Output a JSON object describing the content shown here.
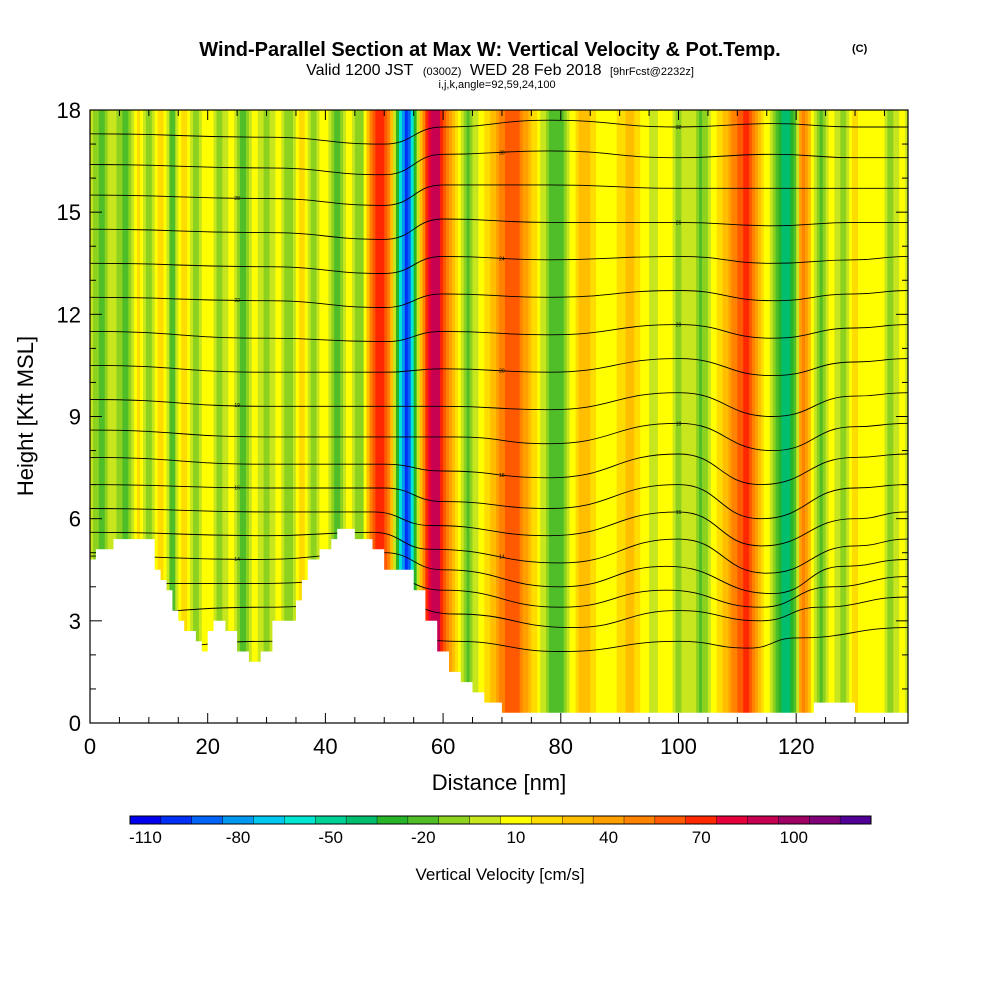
{
  "chart_data": {
    "type": "heatmap",
    "title": "Wind-Parallel Section at Max W: Vertical Velocity & Pot.Temp.",
    "title_mark": "(C)",
    "subtitle": {
      "valid_prefix": "Valid 1200 JST",
      "utc": "(0300Z)",
      "date": "WED 28 Feb 2018",
      "forecast": "[9hrFcst@2232z]"
    },
    "indices_line": "i,j,k,angle=92,59,24,100",
    "xlabel": "Distance [nm]",
    "ylabel": "Height [Kft MSL]",
    "xlim": [
      0,
      139
    ],
    "ylim": [
      0,
      18
    ],
    "x_ticks": [
      "0",
      "20",
      "40",
      "60",
      "80",
      "100",
      "120"
    ],
    "x_tick_values": [
      0,
      20,
      40,
      60,
      80,
      100,
      120
    ],
    "y_ticks": [
      "0",
      "3",
      "6",
      "9",
      "12",
      "15",
      "18"
    ],
    "y_tick_values": [
      0,
      3,
      6,
      9,
      12,
      15,
      18
    ],
    "colorbar": {
      "label": "Vertical Velocity [cm/s]",
      "min": -115,
      "max": 125,
      "step": 10,
      "tick_labels": [
        "-110",
        "-80",
        "-50",
        "-20",
        "10",
        "40",
        "70",
        "100"
      ],
      "tick_values": [
        -110,
        -80,
        -50,
        -20,
        10,
        40,
        70,
        100
      ],
      "colors": [
        "#0000f0",
        "#0030f8",
        "#0064f8",
        "#0098f0",
        "#00c8f0",
        "#00e6d2",
        "#00d296",
        "#00be6e",
        "#28b428",
        "#50be28",
        "#8cd21e",
        "#c8e61e",
        "#ffff00",
        "#ffdc00",
        "#ffbe00",
        "#ffa000",
        "#ff8200",
        "#ff5a00",
        "#ff2800",
        "#e6003c",
        "#c80050",
        "#a00064",
        "#820078",
        "#500096"
      ]
    },
    "terrain_kft": [
      {
        "x": 0,
        "h": 4.8
      },
      {
        "x": 1,
        "h": 5.1
      },
      {
        "x": 3,
        "h": 5.1
      },
      {
        "x": 4,
        "h": 5.4
      },
      {
        "x": 10,
        "h": 5.4
      },
      {
        "x": 11,
        "h": 4.5
      },
      {
        "x": 12,
        "h": 4.2
      },
      {
        "x": 13,
        "h": 3.9
      },
      {
        "x": 14,
        "h": 3.3
      },
      {
        "x": 15,
        "h": 3.0
      },
      {
        "x": 16,
        "h": 2.7
      },
      {
        "x": 18,
        "h": 2.4
      },
      {
        "x": 19,
        "h": 2.1
      },
      {
        "x": 20,
        "h": 2.7
      },
      {
        "x": 21,
        "h": 3.0
      },
      {
        "x": 23,
        "h": 2.7
      },
      {
        "x": 25,
        "h": 2.1
      },
      {
        "x": 27,
        "h": 1.8
      },
      {
        "x": 29,
        "h": 2.1
      },
      {
        "x": 31,
        "h": 3.0
      },
      {
        "x": 35,
        "h": 3.6
      },
      {
        "x": 36,
        "h": 4.2
      },
      {
        "x": 37,
        "h": 4.8
      },
      {
        "x": 39,
        "h": 5.1
      },
      {
        "x": 41,
        "h": 5.4
      },
      {
        "x": 42,
        "h": 5.7
      },
      {
        "x": 44,
        "h": 5.7
      },
      {
        "x": 45,
        "h": 5.4
      },
      {
        "x": 47,
        "h": 5.4
      },
      {
        "x": 48,
        "h": 5.1
      },
      {
        "x": 50,
        "h": 4.5
      },
      {
        "x": 53,
        "h": 4.5
      },
      {
        "x": 55,
        "h": 3.9
      },
      {
        "x": 57,
        "h": 3.0
      },
      {
        "x": 59,
        "h": 2.1
      },
      {
        "x": 61,
        "h": 1.5
      },
      {
        "x": 63,
        "h": 1.2
      },
      {
        "x": 65,
        "h": 0.9
      },
      {
        "x": 67,
        "h": 0.6
      },
      {
        "x": 70,
        "h": 0.3
      },
      {
        "x": 75,
        "h": 0.3
      },
      {
        "x": 120,
        "h": 0.3
      },
      {
        "x": 123,
        "h": 0.6
      },
      {
        "x": 127,
        "h": 0.6
      },
      {
        "x": 130,
        "h": 0.3
      },
      {
        "x": 139,
        "h": 0.3
      }
    ],
    "bands_w": [
      {
        "x": 0.0,
        "w": 0.0
      },
      {
        "x": 2.0,
        "w": -18.0
      },
      {
        "x": 4.0,
        "w": 5.0
      },
      {
        "x": 6.0,
        "w": -24.0
      },
      {
        "x": 8.0,
        "w": 20.0
      },
      {
        "x": 10.0,
        "w": -14.0
      },
      {
        "x": 12.0,
        "w": 28.0
      },
      {
        "x": 14.0,
        "w": -22.0
      },
      {
        "x": 16.0,
        "w": 30.0
      },
      {
        "x": 18.0,
        "w": -12.0
      },
      {
        "x": 20.0,
        "w": 18.0
      },
      {
        "x": 22.0,
        "w": -15.0
      },
      {
        "x": 24.0,
        "w": 15.0
      },
      {
        "x": 26.0,
        "w": -20.0
      },
      {
        "x": 28.0,
        "w": 10.0
      },
      {
        "x": 30.0,
        "w": -14.0
      },
      {
        "x": 32.0,
        "w": 12.0
      },
      {
        "x": 34.0,
        "w": -18.0
      },
      {
        "x": 36.0,
        "w": 28.0
      },
      {
        "x": 38.0,
        "w": -10.0
      },
      {
        "x": 40.0,
        "w": 15.0
      },
      {
        "x": 42.0,
        "w": -22.0
      },
      {
        "x": 44.0,
        "w": 12.0
      },
      {
        "x": 46.0,
        "w": -18.0
      },
      {
        "x": 48.0,
        "w": 55.0
      },
      {
        "x": 49.5,
        "w": 75.0
      },
      {
        "x": 51.0,
        "w": 40.0
      },
      {
        "x": 52.0,
        "w": -10.0
      },
      {
        "x": 53.0,
        "w": -75.0
      },
      {
        "x": 54.0,
        "w": -105.0
      },
      {
        "x": 55.0,
        "w": -40.0
      },
      {
        "x": 56.0,
        "w": 15.0
      },
      {
        "x": 57.5,
        "w": 75.0
      },
      {
        "x": 59.0,
        "w": 95.0
      },
      {
        "x": 61.0,
        "w": 40.0
      },
      {
        "x": 62.5,
        "w": 10.0
      },
      {
        "x": 64.0,
        "w": -20.0
      },
      {
        "x": 66.0,
        "w": 5.0
      },
      {
        "x": 68.0,
        "w": 25.0
      },
      {
        "x": 70.0,
        "w": 50.0
      },
      {
        "x": 72.0,
        "w": 65.0
      },
      {
        "x": 74.0,
        "w": 40.0
      },
      {
        "x": 76.0,
        "w": 15.0
      },
      {
        "x": 78.0,
        "w": -15.0
      },
      {
        "x": 80.0,
        "w": -20.0
      },
      {
        "x": 82.0,
        "w": 10.0
      },
      {
        "x": 84.0,
        "w": 35.0
      },
      {
        "x": 86.0,
        "w": 15.0
      },
      {
        "x": 88.0,
        "w": 5.0
      },
      {
        "x": 90.0,
        "w": 20.0
      },
      {
        "x": 92.0,
        "w": 30.0
      },
      {
        "x": 94.0,
        "w": 10.0
      },
      {
        "x": 96.0,
        "w": 0.0
      },
      {
        "x": 98.0,
        "w": 15.0
      },
      {
        "x": 100.0,
        "w": -10.0
      },
      {
        "x": 102.0,
        "w": 5.0
      },
      {
        "x": 104.0,
        "w": -18.0
      },
      {
        "x": 106.0,
        "w": 10.0
      },
      {
        "x": 108.0,
        "w": 30.0
      },
      {
        "x": 110.0,
        "w": 55.0
      },
      {
        "x": 111.5,
        "w": 70.0
      },
      {
        "x": 113.0,
        "w": 45.0
      },
      {
        "x": 115.0,
        "w": 10.0
      },
      {
        "x": 117.0,
        "w": -30.0
      },
      {
        "x": 118.5,
        "w": -45.0
      },
      {
        "x": 120.0,
        "w": -15.0
      },
      {
        "x": 121.0,
        "w": 60.0
      },
      {
        "x": 122.0,
        "w": 35.0
      },
      {
        "x": 124.0,
        "w": -20.0
      },
      {
        "x": 126.0,
        "w": 10.0
      },
      {
        "x": 128.0,
        "w": -10.0
      },
      {
        "x": 130.0,
        "w": 20.0
      },
      {
        "x": 132.0,
        "w": 5.0
      },
      {
        "x": 134.0,
        "w": 15.0
      },
      {
        "x": 136.0,
        "w": -10.0
      },
      {
        "x": 138.0,
        "w": 10.0
      },
      {
        "x": 139.0,
        "w": 0.0
      }
    ],
    "isentropes": [
      {
        "label": "",
        "points": [
          [
            0,
            2.0
          ],
          [
            30,
            2.4
          ],
          [
            50,
            2.6
          ],
          [
            62,
            2.4
          ],
          [
            80,
            2.1
          ],
          [
            100,
            2.4
          ],
          [
            112,
            2.2
          ],
          [
            120,
            2.5
          ],
          [
            139,
            2.8
          ]
        ]
      },
      {
        "label": "",
        "points": [
          [
            0,
            3.2
          ],
          [
            30,
            3.4
          ],
          [
            50,
            3.6
          ],
          [
            62,
            3.2
          ],
          [
            82,
            2.8
          ],
          [
            100,
            3.3
          ],
          [
            114,
            3.0
          ],
          [
            124,
            3.4
          ],
          [
            139,
            3.7
          ]
        ]
      },
      {
        "label": "",
        "points": [
          [
            0,
            4.1
          ],
          [
            30,
            4.1
          ],
          [
            50,
            4.3
          ],
          [
            60,
            3.9
          ],
          [
            80,
            3.4
          ],
          [
            98,
            3.9
          ],
          [
            114,
            3.4
          ],
          [
            126,
            4.0
          ],
          [
            139,
            4.3
          ]
        ]
      },
      {
        "label": "14",
        "points": [
          [
            0,
            4.9
          ],
          [
            28,
            4.8
          ],
          [
            50,
            5.0
          ],
          [
            60,
            4.5
          ],
          [
            80,
            4.0
          ],
          [
            98,
            4.6
          ],
          [
            116,
            3.8
          ],
          [
            128,
            4.6
          ],
          [
            139,
            4.8
          ]
        ]
      },
      {
        "label": "14",
        "points": [
          [
            0,
            5.6
          ],
          [
            30,
            5.5
          ],
          [
            48,
            5.6
          ],
          [
            58,
            5.1
          ],
          [
            80,
            4.7
          ],
          [
            100,
            5.4
          ],
          [
            115,
            4.4
          ],
          [
            130,
            5.2
          ],
          [
            139,
            5.4
          ]
        ]
      },
      {
        "label": "16",
        "points": [
          [
            0,
            6.3
          ],
          [
            30,
            6.2
          ],
          [
            48,
            6.2
          ],
          [
            58,
            5.8
          ],
          [
            78,
            5.5
          ],
          [
            100,
            6.2
          ],
          [
            114,
            5.2
          ],
          [
            130,
            6.0
          ],
          [
            139,
            6.2
          ]
        ]
      },
      {
        "label": "16",
        "points": [
          [
            0,
            7.0
          ],
          [
            30,
            6.9
          ],
          [
            50,
            6.9
          ],
          [
            60,
            6.5
          ],
          [
            78,
            6.3
          ],
          [
            100,
            7.0
          ],
          [
            114,
            6.0
          ],
          [
            130,
            6.9
          ],
          [
            139,
            7.0
          ]
        ]
      },
      {
        "label": "18",
        "points": [
          [
            0,
            7.8
          ],
          [
            30,
            7.6
          ],
          [
            50,
            7.6
          ],
          [
            60,
            7.4
          ],
          [
            78,
            7.2
          ],
          [
            100,
            7.9
          ],
          [
            114,
            7.0
          ],
          [
            130,
            7.8
          ],
          [
            139,
            7.9
          ]
        ]
      },
      {
        "label": "18",
        "points": [
          [
            0,
            8.6
          ],
          [
            30,
            8.4
          ],
          [
            50,
            8.4
          ],
          [
            62,
            8.4
          ],
          [
            78,
            8.2
          ],
          [
            100,
            8.8
          ],
          [
            116,
            8.0
          ],
          [
            130,
            8.7
          ],
          [
            139,
            8.8
          ]
        ]
      },
      {
        "label": "19",
        "points": [
          [
            0,
            9.5
          ],
          [
            30,
            9.3
          ],
          [
            50,
            9.3
          ],
          [
            60,
            9.3
          ],
          [
            78,
            9.2
          ],
          [
            100,
            9.7
          ],
          [
            116,
            9.0
          ],
          [
            130,
            9.6
          ],
          [
            139,
            9.7
          ]
        ]
      },
      {
        "label": "20",
        "points": [
          [
            0,
            10.5
          ],
          [
            30,
            10.3
          ],
          [
            50,
            10.3
          ],
          [
            60,
            10.4
          ],
          [
            78,
            10.3
          ],
          [
            100,
            10.7
          ],
          [
            116,
            10.2
          ],
          [
            130,
            10.6
          ],
          [
            139,
            10.7
          ]
        ]
      },
      {
        "label": "20",
        "points": [
          [
            0,
            11.5
          ],
          [
            30,
            11.3
          ],
          [
            50,
            11.2
          ],
          [
            60,
            11.5
          ],
          [
            78,
            11.4
          ],
          [
            100,
            11.7
          ],
          [
            116,
            11.3
          ],
          [
            130,
            11.6
          ],
          [
            139,
            11.7
          ]
        ]
      },
      {
        "label": "22",
        "points": [
          [
            0,
            12.5
          ],
          [
            30,
            12.4
          ],
          [
            50,
            12.2
          ],
          [
            60,
            12.6
          ],
          [
            78,
            12.5
          ],
          [
            100,
            12.7
          ],
          [
            116,
            12.4
          ],
          [
            130,
            12.6
          ],
          [
            139,
            12.7
          ]
        ]
      },
      {
        "label": "24",
        "points": [
          [
            0,
            13.5
          ],
          [
            30,
            13.4
          ],
          [
            50,
            13.2
          ],
          [
            60,
            13.7
          ],
          [
            78,
            13.6
          ],
          [
            100,
            13.7
          ],
          [
            116,
            13.5
          ],
          [
            130,
            13.6
          ],
          [
            139,
            13.7
          ]
        ]
      },
      {
        "label": "26",
        "points": [
          [
            0,
            14.5
          ],
          [
            30,
            14.4
          ],
          [
            50,
            14.2
          ],
          [
            60,
            14.8
          ],
          [
            78,
            14.7
          ],
          [
            100,
            14.7
          ],
          [
            116,
            14.6
          ],
          [
            130,
            14.7
          ],
          [
            139,
            14.7
          ]
        ]
      },
      {
        "label": "28",
        "points": [
          [
            0,
            15.5
          ],
          [
            30,
            15.4
          ],
          [
            50,
            15.2
          ],
          [
            60,
            15.8
          ],
          [
            78,
            15.8
          ],
          [
            100,
            15.7
          ],
          [
            116,
            15.7
          ],
          [
            130,
            15.7
          ],
          [
            139,
            15.7
          ]
        ]
      },
      {
        "label": "30",
        "points": [
          [
            0,
            16.4
          ],
          [
            30,
            16.3
          ],
          [
            50,
            16.1
          ],
          [
            60,
            16.7
          ],
          [
            78,
            16.8
          ],
          [
            100,
            16.6
          ],
          [
            116,
            16.7
          ],
          [
            130,
            16.6
          ],
          [
            139,
            16.6
          ]
        ]
      },
      {
        "label": "32",
        "points": [
          [
            0,
            17.3
          ],
          [
            30,
            17.2
          ],
          [
            50,
            17.0
          ],
          [
            60,
            17.5
          ],
          [
            78,
            17.7
          ],
          [
            100,
            17.5
          ],
          [
            116,
            17.6
          ],
          [
            130,
            17.5
          ],
          [
            139,
            17.5
          ]
        ]
      }
    ]
  }
}
